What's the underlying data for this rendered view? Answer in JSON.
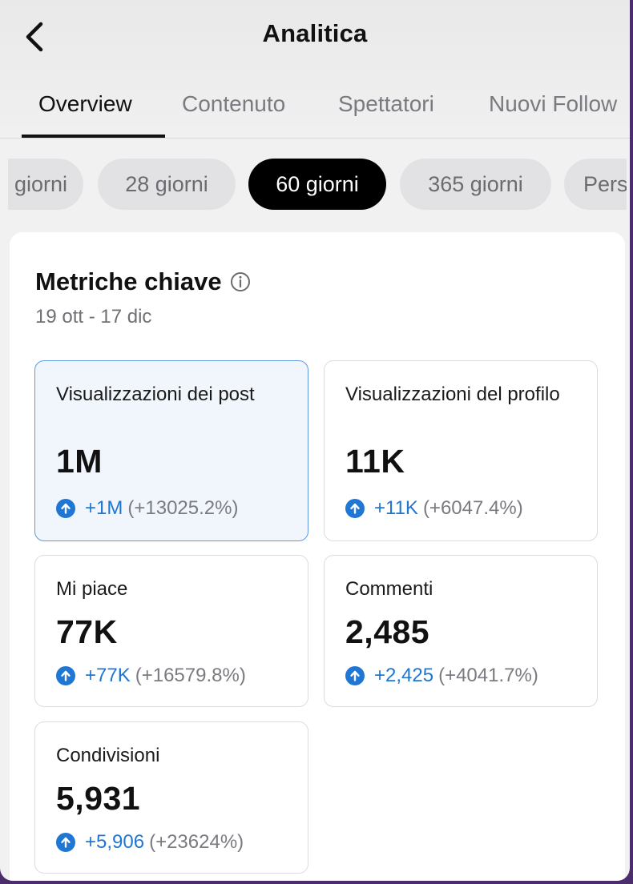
{
  "header": {
    "title": "Analitica",
    "back_icon": "chevron-left-icon"
  },
  "tabs": [
    {
      "label": "Overview",
      "active": true
    },
    {
      "label": "Contenuto",
      "active": false
    },
    {
      "label": "Spettatori",
      "active": false
    },
    {
      "label": "Nuovi Follow",
      "active": false
    }
  ],
  "ranges": [
    {
      "label": "giorni",
      "active": false
    },
    {
      "label": "28 giorni",
      "active": false
    },
    {
      "label": "60 giorni",
      "active": true
    },
    {
      "label": "365 giorni",
      "active": false
    },
    {
      "label": "Pers",
      "active": false
    }
  ],
  "metrics_card": {
    "title": "Metriche chiave",
    "info_icon": "info-icon",
    "date_range": "19 ott - 17 dic",
    "items": [
      {
        "label": "Visualizzazioni dei post",
        "value": "1M",
        "delta": "+1M",
        "delta_pct": "(+13025.2%)",
        "selected": true
      },
      {
        "label": "Visualizzazioni del profilo",
        "value": "11K",
        "delta": "+11K",
        "delta_pct": "(+6047.4%)",
        "selected": false
      },
      {
        "label": "Mi piace",
        "value": "77K",
        "delta": "+77K",
        "delta_pct": "(+16579.8%)",
        "selected": false
      },
      {
        "label": "Commenti",
        "value": "2,485",
        "delta": "+2,425",
        "delta_pct": "(+4041.7%)",
        "selected": false
      },
      {
        "label": "Condivisioni",
        "value": "5,931",
        "delta": "+5,906",
        "delta_pct": "(+23624%)",
        "selected": false
      }
    ]
  },
  "colors": {
    "accent": "#1f76d3",
    "selected_bg": "#f1f6fd",
    "selected_border": "#5f98dc",
    "chip_active": "#000000"
  }
}
